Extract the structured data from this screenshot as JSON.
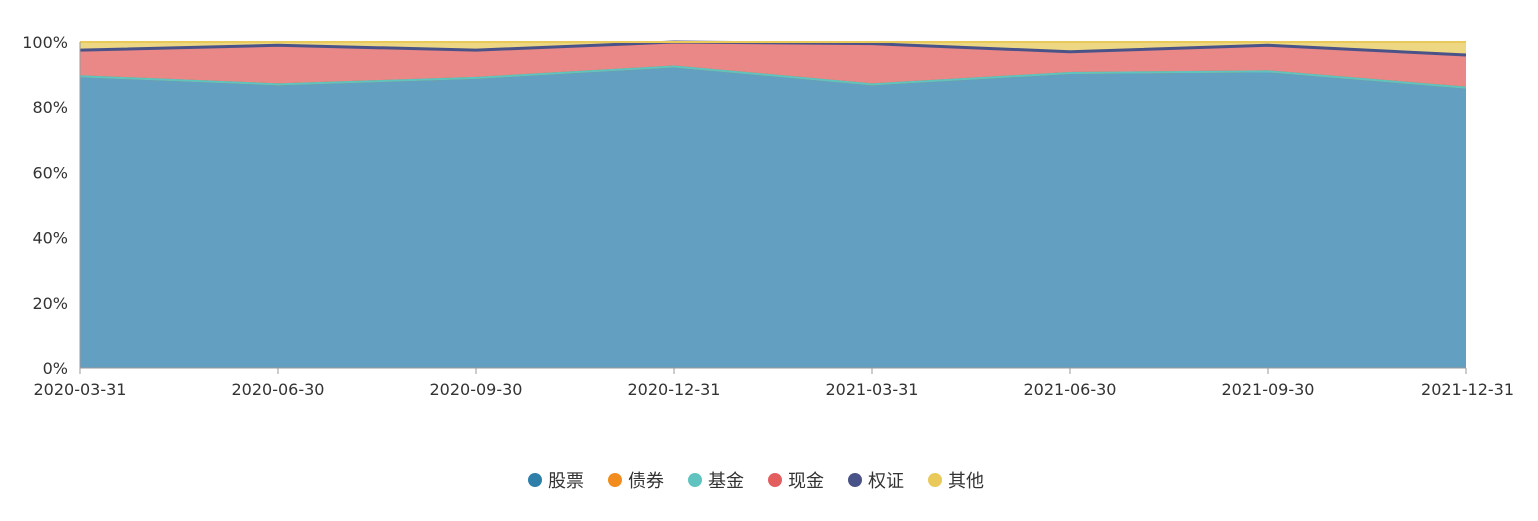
{
  "chart_data": {
    "type": "area",
    "stacked": true,
    "x": [
      "2020-03-31",
      "2020-06-30",
      "2020-09-30",
      "2020-12-31",
      "2021-03-31",
      "2021-06-30",
      "2021-09-30",
      "2021-12-31"
    ],
    "series": [
      {
        "name": "股票",
        "color": "#2f7fab",
        "values": [
          89.5,
          87.0,
          89.0,
          92.5,
          87.0,
          90.5,
          91.0,
          86.0
        ]
      },
      {
        "name": "债券",
        "color": "#f28c1f",
        "values": [
          0,
          0,
          0,
          0,
          0,
          0,
          0,
          0
        ]
      },
      {
        "name": "基金",
        "color": "#5fc4c0",
        "values": [
          0,
          0,
          0,
          0,
          0,
          0,
          0,
          0
        ]
      },
      {
        "name": "现金",
        "color": "#e35f5f",
        "values": [
          8.0,
          12.0,
          8.5,
          7.5,
          12.5,
          6.5,
          8.0,
          10.0
        ]
      },
      {
        "name": "权证",
        "color": "#4a5388",
        "values": [
          0,
          0,
          0,
          0,
          0,
          0,
          0,
          0
        ]
      },
      {
        "name": "其他",
        "color": "#e8c95a",
        "values": [
          2.5,
          1.0,
          2.5,
          0,
          0.5,
          3.0,
          1.0,
          4.0
        ]
      }
    ],
    "yticks": [
      "0%",
      "20%",
      "40%",
      "60%",
      "80%",
      "100%"
    ],
    "ylim": [
      0,
      100
    ],
    "grid": false,
    "legend": "bottom-center",
    "title": "",
    "xlabel": "",
    "ylabel": ""
  }
}
